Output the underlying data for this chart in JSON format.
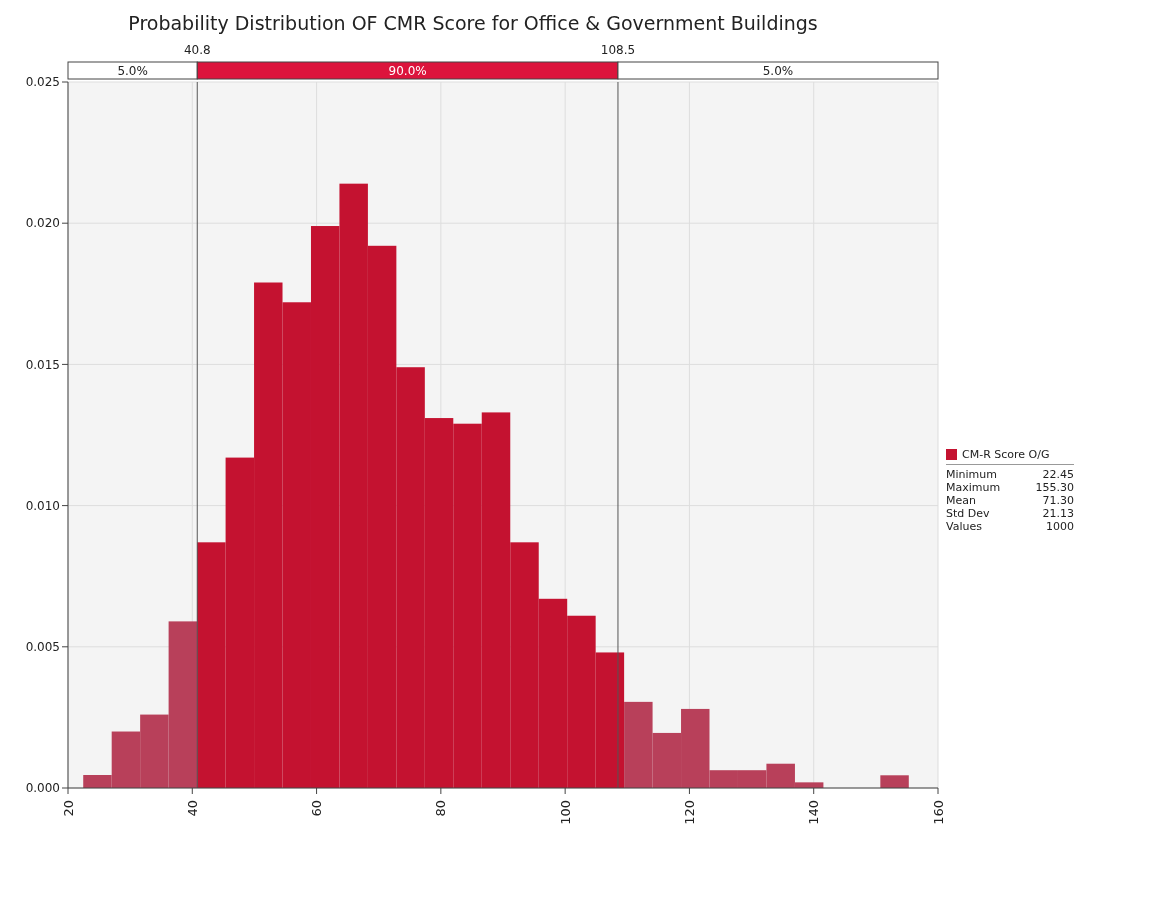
{
  "chart_data": {
    "type": "histogram",
    "title": "Probability Distribution  OF CMR Score for Office & Government Buildings",
    "bins": [
      22.45,
      27.03,
      31.61,
      36.19,
      40.77,
      45.36,
      49.94,
      54.52,
      59.1,
      63.68,
      68.26,
      72.84,
      77.42,
      82.0,
      86.58,
      91.17,
      95.75,
      100.33,
      104.91,
      109.49,
      114.07,
      118.65,
      123.23,
      127.81,
      132.39,
      136.98,
      141.56,
      146.14,
      150.72,
      155.3
    ],
    "series": [
      {
        "name": "CM-R Score O/G",
        "color": "#c41230",
        "values": [
          0.00046,
          0.002,
          0.0026,
          0.0059,
          0.0087,
          0.0117,
          0.0179,
          0.0172,
          0.0199,
          0.0214,
          0.0192,
          0.0149,
          0.0131,
          0.0129,
          0.0133,
          0.0087,
          0.0067,
          0.0061,
          0.0048,
          0.00305,
          0.00195,
          0.0028,
          0.00063,
          0.00063,
          0.00086,
          0.0002,
          0,
          0,
          0.00045
        ],
        "colors": [
          "#b8405a",
          "#b8405a",
          "#b8405a",
          "#b8405a",
          "#c41230",
          "#c41230",
          "#c41230",
          "#c41230",
          "#c41230",
          "#c41230",
          "#c41230",
          "#c41230",
          "#c41230",
          "#c41230",
          "#c41230",
          "#c41230",
          "#c41230",
          "#c41230",
          "#c41230",
          "#b8405a",
          "#b8405a",
          "#b8405a",
          "#b8405a",
          "#b8405a",
          "#b8405a",
          "#b8405a",
          "#b8405a",
          "#b8405a",
          "#b8405a"
        ]
      }
    ],
    "xlim": [
      20,
      160
    ],
    "xticks": [
      20,
      40,
      60,
      80,
      100,
      120,
      140,
      160
    ],
    "ylim": [
      0,
      0.025
    ],
    "yticks": [
      {
        "value": 0,
        "label": "0.000"
      },
      {
        "value": 0.005,
        "label": "0.005"
      },
      {
        "value": 0.01,
        "label": "0.010"
      },
      {
        "value": 0.015,
        "label": "0.015"
      },
      {
        "value": 0.02,
        "label": "0.020"
      },
      {
        "value": 0.025,
        "label": "0.025"
      }
    ],
    "grid": true,
    "legend": "right",
    "ref_lines": [
      {
        "axis": "x",
        "value": 40.8,
        "label": "40.8",
        "color": "#555555"
      },
      {
        "axis": "x",
        "value": 108.5,
        "label": "108.5",
        "color": "#555555"
      }
    ],
    "annotations": [
      "5.0%",
      "90.0%",
      "5.0%",
      "Minimum 22.45",
      "Maximum 155.30",
      "Mean 71.30",
      "Std Dev 21.13",
      "Values 1000"
    ]
  }
}
